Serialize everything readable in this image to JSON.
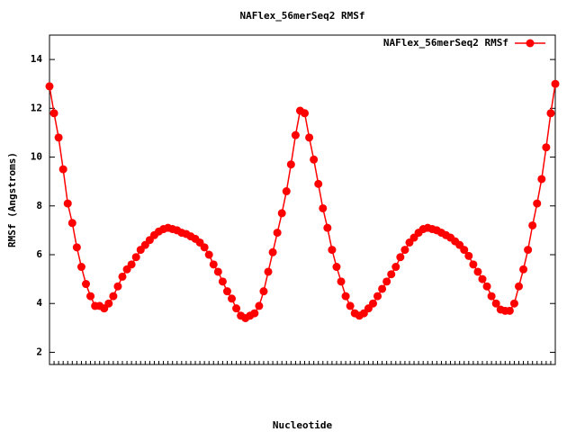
{
  "chart_data": {
    "type": "line",
    "title": "NAFlex_56merSeq2 RMSf",
    "x_label": "Nucleotide",
    "y_label": "RMSf (Angstroms)",
    "x": [
      1,
      2,
      3,
      4,
      5,
      6,
      7,
      8,
      9,
      10,
      11,
      12,
      13,
      14,
      15,
      16,
      17,
      18,
      19,
      20,
      21,
      22,
      23,
      24,
      25,
      26,
      27,
      28,
      29,
      30,
      31,
      32,
      33,
      34,
      35,
      36,
      37,
      38,
      39,
      40,
      41,
      42,
      43,
      44,
      45,
      46,
      47,
      48,
      49,
      50,
      51,
      52,
      53,
      54,
      55,
      56,
      57,
      58,
      59,
      60,
      61,
      62,
      63,
      64,
      65,
      66,
      67,
      68,
      69,
      70,
      71,
      72,
      73,
      74,
      75,
      76,
      77,
      78,
      79,
      80,
      81,
      82,
      83,
      84,
      85,
      86,
      87,
      88,
      89,
      90,
      91,
      92,
      93,
      94,
      95,
      96,
      97,
      98,
      99,
      100,
      101,
      102,
      103,
      104,
      105,
      106,
      107,
      108,
      109,
      110,
      111,
      112
    ],
    "xlim": [
      1,
      112
    ],
    "series": [
      {
        "name": "NAFlex_56merSeq2 RMSf",
        "color": "#ff0000",
        "values": [
          12.9,
          11.8,
          10.8,
          9.5,
          8.1,
          7.3,
          6.3,
          5.5,
          4.8,
          4.3,
          3.9,
          3.9,
          3.8,
          4.0,
          4.3,
          4.7,
          5.1,
          5.4,
          5.6,
          5.9,
          6.2,
          6.4,
          6.6,
          6.8,
          6.95,
          7.05,
          7.1,
          7.05,
          7.0,
          6.9,
          6.85,
          6.75,
          6.65,
          6.5,
          6.3,
          6.0,
          5.6,
          5.3,
          4.9,
          4.5,
          4.2,
          3.8,
          3.5,
          3.4,
          3.5,
          3.6,
          3.9,
          4.5,
          5.3,
          6.1,
          6.9,
          7.7,
          8.6,
          9.7,
          10.9,
          11.9,
          11.8,
          10.8,
          9.9,
          8.9,
          7.9,
          7.1,
          6.2,
          5.5,
          4.9,
          4.3,
          3.9,
          3.6,
          3.5,
          3.6,
          3.8,
          4.0,
          4.3,
          4.6,
          4.9,
          5.2,
          5.5,
          5.9,
          6.2,
          6.5,
          6.7,
          6.9,
          7.05,
          7.1,
          7.05,
          7.0,
          6.9,
          6.8,
          6.7,
          6.55,
          6.4,
          6.2,
          5.95,
          5.6,
          5.3,
          5.0,
          4.7,
          4.3,
          4.0,
          3.75,
          3.7,
          3.7,
          4.0,
          4.7,
          5.4,
          6.2,
          7.2,
          8.1,
          9.1,
          10.4,
          11.8,
          13.0
        ]
      }
    ],
    "ylim": [
      1.5,
      15
    ],
    "yticks": [
      2,
      4,
      6,
      8,
      10,
      12,
      14
    ],
    "legend": "top-right"
  }
}
